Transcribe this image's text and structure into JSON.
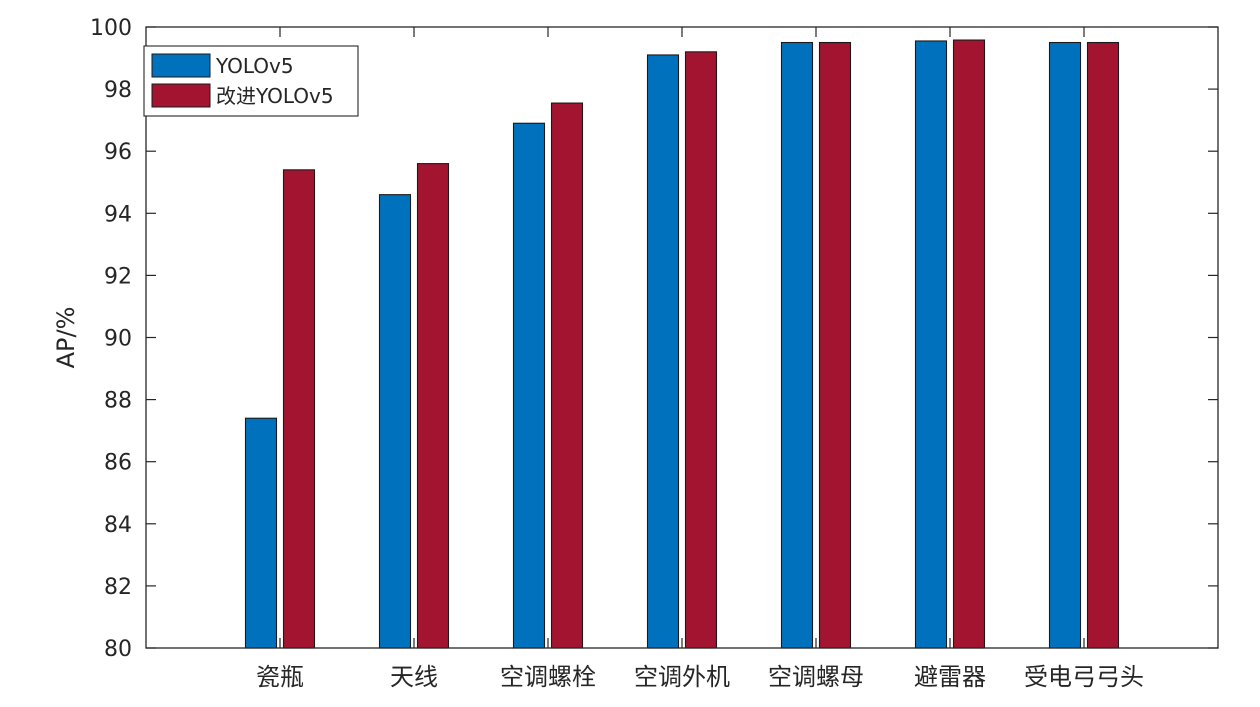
{
  "chart_data": {
    "type": "bar",
    "title": "",
    "xlabel": "",
    "ylabel": "AP/%",
    "ylim": [
      80,
      100
    ],
    "yticks": [
      80,
      82,
      84,
      86,
      88,
      90,
      92,
      94,
      96,
      98,
      100
    ],
    "grid": false,
    "legend_position": "top-left",
    "categories": [
      "瓷瓶",
      "天线",
      "空调螺栓",
      "空调外机",
      "空调螺母",
      "避雷器",
      "受电弓弓头"
    ],
    "series": [
      {
        "name": "YOLOv5",
        "color": "#0072BD",
        "values": [
          87.4,
          94.6,
          96.9,
          99.1,
          99.5,
          99.55,
          99.5
        ]
      },
      {
        "name": "改进YOLOv5",
        "color": "#A2142F",
        "values": [
          95.4,
          95.6,
          97.55,
          99.2,
          99.5,
          99.58,
          99.5
        ]
      }
    ]
  }
}
